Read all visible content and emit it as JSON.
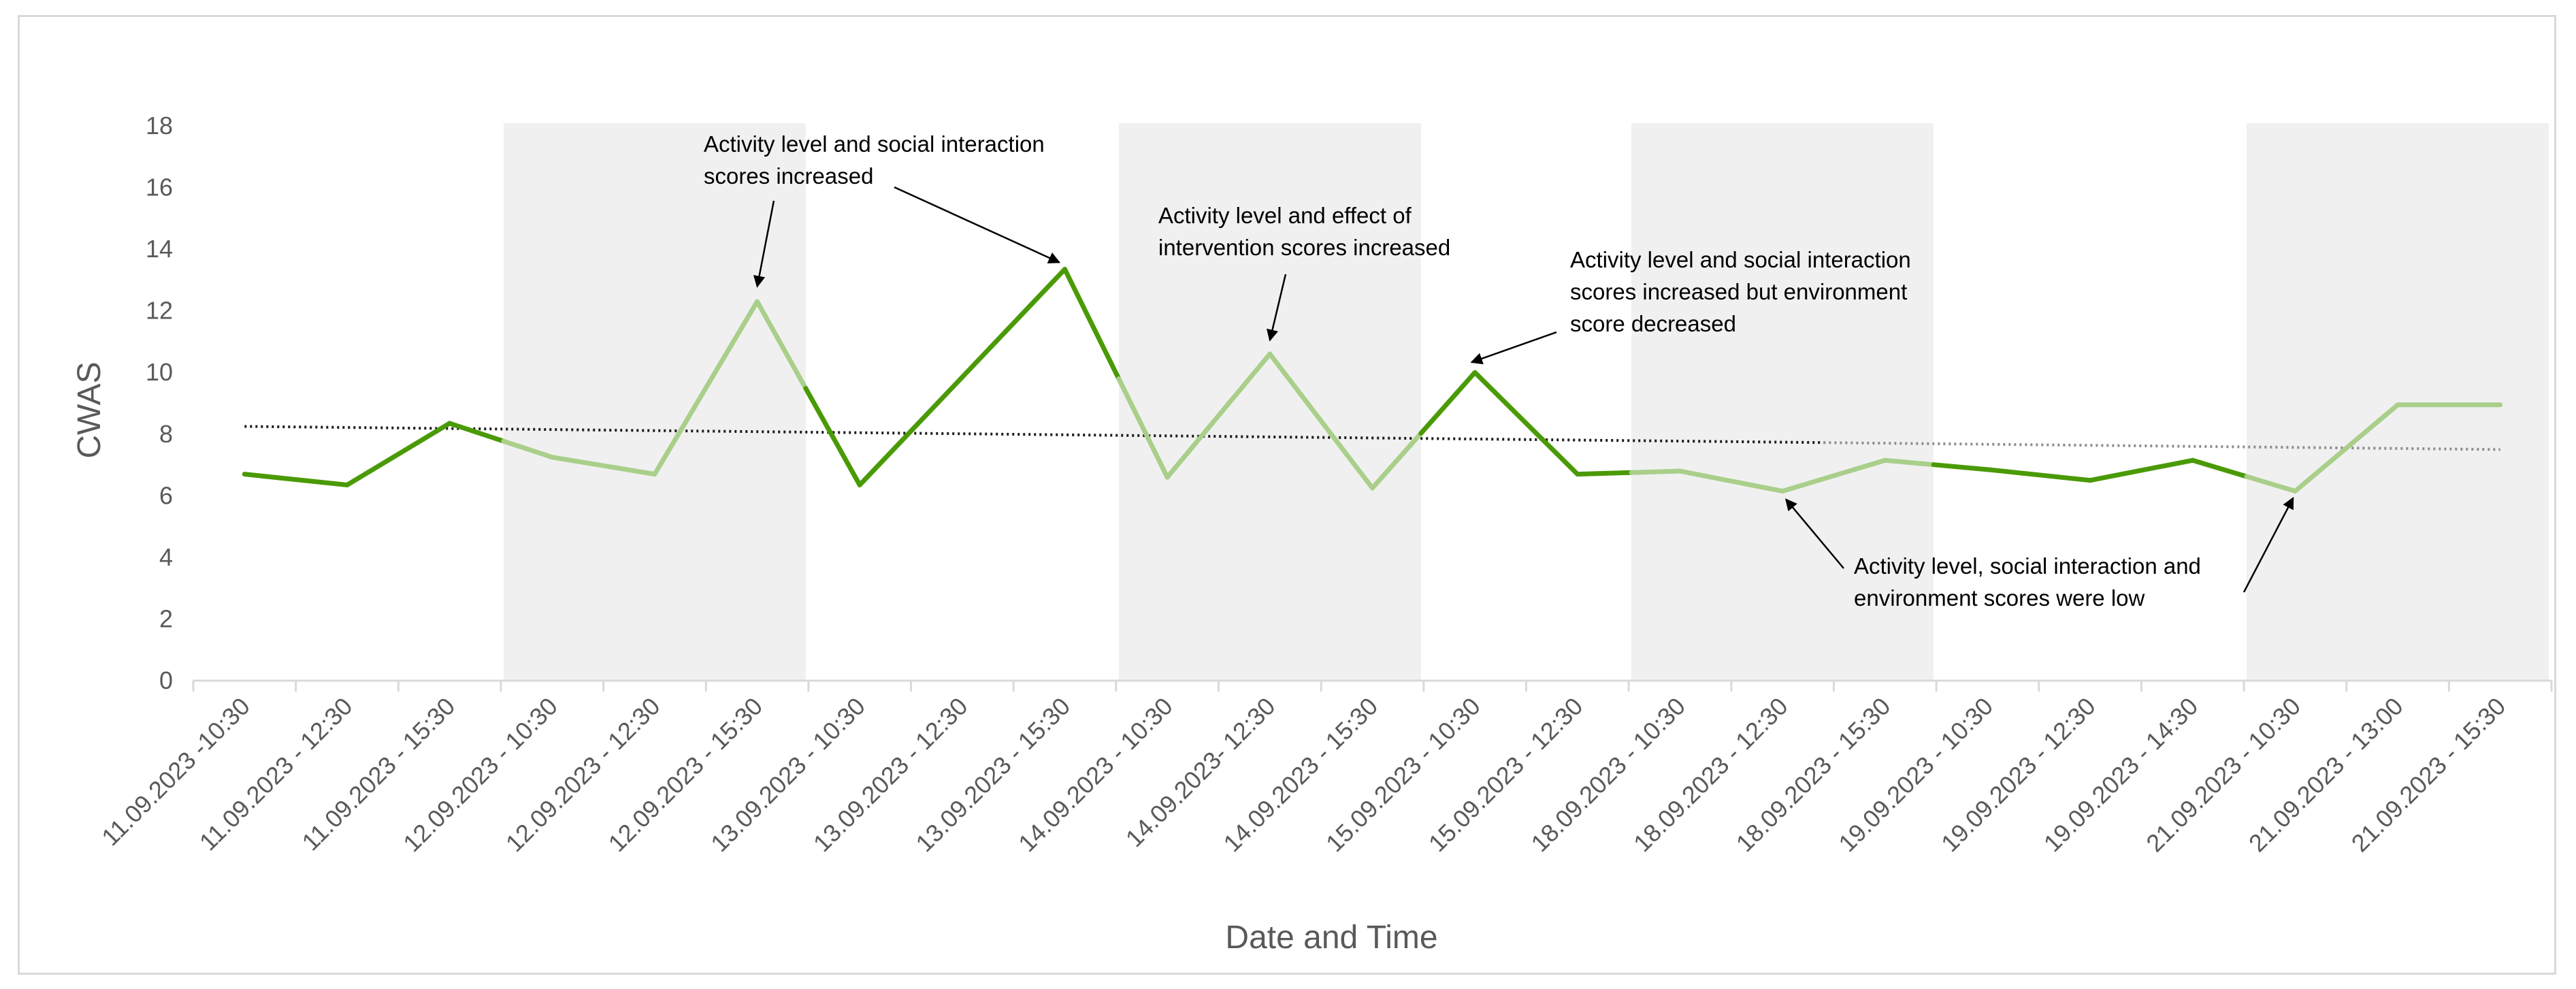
{
  "chart_data": {
    "type": "line",
    "xlabel": "Date and Time",
    "ylabel": "CWAS",
    "ylim": [
      0,
      18
    ],
    "yticks": [
      0,
      2,
      4,
      6,
      8,
      10,
      12,
      14,
      16,
      18
    ],
    "grid": false,
    "legend": "none",
    "categories": [
      "11.09.2023 -10:30",
      "11.09.2023 - 12:30",
      "11.09.2023 - 15:30",
      "12.09.2023 - 10:30",
      "12.09.2023 - 12:30",
      "12.09.2023 - 15:30",
      "13.09.2023 - 10:30",
      "13.09.2023 - 12:30",
      "13.09.2023 - 15:30",
      "14.09.2023 - 10:30",
      "14.09.2023- 12:30",
      "14.09.2023 - 15:30",
      "15.09.2023 - 10:30",
      "15.09.2023 - 12:30",
      "18.09.2023 - 10:30",
      "18.09.2023 - 12:30",
      "18.09.2023 - 15:30",
      "19.09.2023 - 10:30",
      "19.09.2023 - 12:30",
      "19.09.2023 - 14:30",
      "21.09.2023 - 10:30",
      "21.09.2023 - 13:00",
      "21.09.2023 - 15:30"
    ],
    "values": [
      6.7,
      6.35,
      8.35,
      7.25,
      6.7,
      12.3,
      6.35,
      9.85,
      13.35,
      6.6,
      10.6,
      6.25,
      10.0,
      6.7,
      6.8,
      6.15,
      7.15,
      6.85,
      6.5,
      7.15,
      6.15,
      8.95,
      8.95
    ],
    "trendline": {
      "style": "dotted",
      "start": 8.25,
      "end": 7.5
    },
    "shaded_ranges": [
      [
        3,
        5
      ],
      [
        9,
        11
      ],
      [
        14,
        16
      ],
      [
        20,
        22
      ]
    ],
    "colors": {
      "in_unshaded": "#4a9a06",
      "in_shaded": "#a9cf8a",
      "shade": "#f0f0f0",
      "axis": "#d9d9d9",
      "trend_dark": "#1a1a1a",
      "trend_light": "#8c8c8c"
    },
    "annotations": [
      {
        "lines": [
          "Activity level and social interaction",
          "scores increased"
        ],
        "targets": [
          5,
          8
        ]
      },
      {
        "lines": [
          "Activity level and effect of",
          "intervention scores increased"
        ],
        "targets": [
          10
        ]
      },
      {
        "lines": [
          "Activity level and social interaction",
          "scores increased but environment",
          "score decreased"
        ],
        "targets": [
          12
        ]
      },
      {
        "lines": [
          "Activity level, social interaction and",
          "environment scores were low"
        ],
        "targets": [
          15,
          20
        ]
      }
    ]
  }
}
